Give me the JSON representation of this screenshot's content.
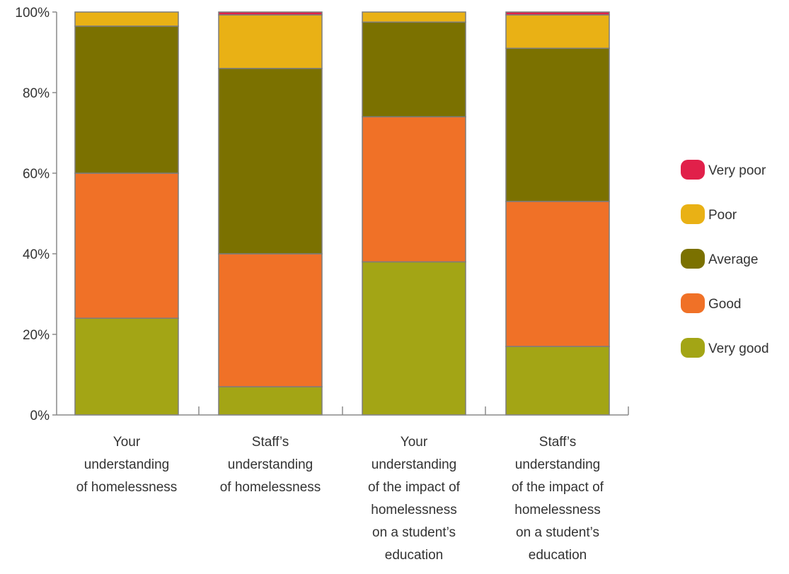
{
  "chart_data": {
    "type": "bar",
    "stacked": true,
    "title": "",
    "xlabel": "",
    "ylabel": "",
    "ylim": [
      0,
      100
    ],
    "y_ticks": [
      "0%",
      "20%",
      "40%",
      "60%",
      "80%",
      "100%"
    ],
    "grid": false,
    "legend_position": "right",
    "categories": [
      [
        "Your",
        "understanding",
        "of homelessness"
      ],
      [
        "Staff’s",
        "understanding",
        "of homelessness"
      ],
      [
        "Your",
        "understanding",
        "of the impact of",
        "homelessness",
        "on a student’s",
        "education"
      ],
      [
        "Staff’s",
        "understanding",
        "of the impact of",
        "homelessness",
        "on a student’s",
        "education"
      ]
    ],
    "series": [
      {
        "name": "Very good",
        "color": "#a3a515",
        "values": [
          24,
          7,
          38,
          17
        ]
      },
      {
        "name": "Good",
        "color": "#f07127",
        "values": [
          36,
          33,
          36,
          36
        ]
      },
      {
        "name": "Average",
        "color": "#7b7100",
        "values": [
          36.5,
          46,
          23.5,
          38
        ]
      },
      {
        "name": "Poor",
        "color": "#e9b115",
        "values": [
          3.5,
          13.3,
          2.5,
          8.3
        ]
      },
      {
        "name": "Very poor",
        "color": "#e1204a",
        "values": [
          0,
          0.7,
          0,
          0.7
        ]
      }
    ],
    "legend_order": [
      "Very poor",
      "Poor",
      "Average",
      "Good",
      "Very good"
    ]
  }
}
